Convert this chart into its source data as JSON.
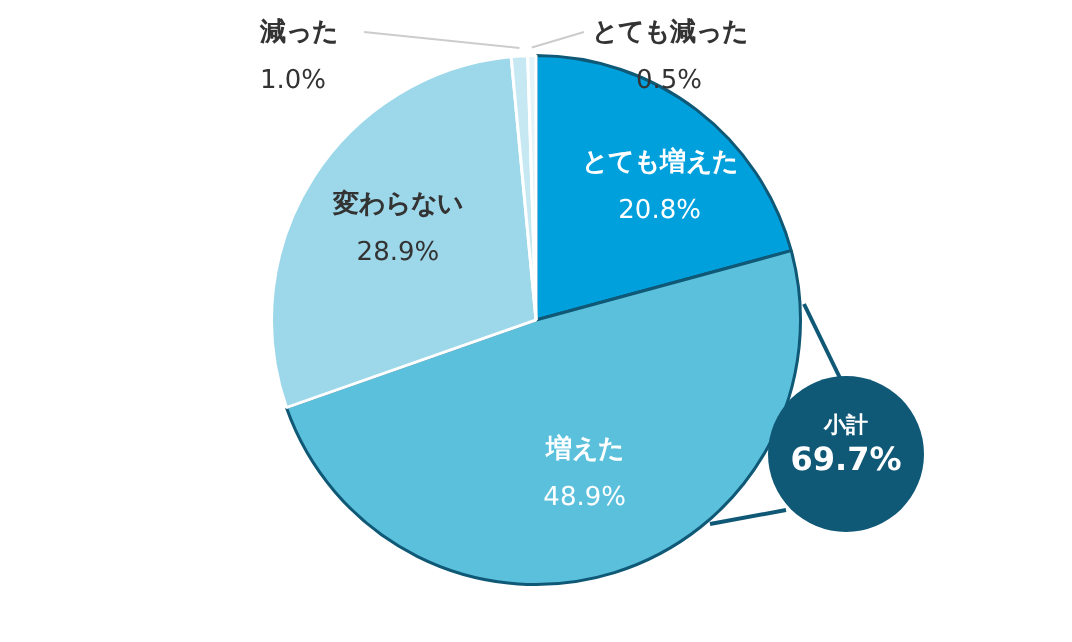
{
  "chart_data": {
    "type": "pie",
    "categories": [
      "とても増えた",
      "増えた",
      "変わらない",
      "減った",
      "とても減った"
    ],
    "values": [
      20.8,
      48.9,
      28.9,
      1.0,
      0.5
    ],
    "value_labels": [
      "20.8%",
      "48.9%",
      "28.9%",
      "1.0%",
      "0.5%"
    ],
    "colors": [
      "#00a0dc",
      "#5bc0dc",
      "#9dd8ea",
      "#c6e8f3",
      "#e4f4f9"
    ],
    "annotations": [
      "小計",
      "69.7%"
    ],
    "legend": false
  }
}
